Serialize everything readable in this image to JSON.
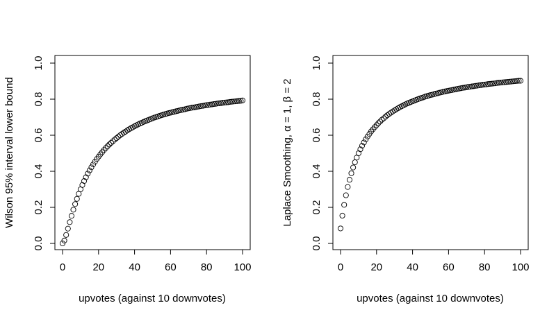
{
  "chart_data": [
    {
      "type": "scatter",
      "xlabel": "upvotes (against 10 downvotes)",
      "ylabel": "Wilson 95% interval lower bound",
      "xlim": [
        0,
        100
      ],
      "ylim": [
        0,
        1
      ],
      "x_ticks": [
        "0",
        "20",
        "40",
        "60",
        "80",
        "100"
      ],
      "y_ticks": [
        "0.0",
        "0.2",
        "0.4",
        "0.6",
        "0.8",
        "1.0"
      ],
      "grid": false,
      "series": [
        {
          "x": [
            0,
            1,
            2,
            3,
            4,
            5,
            6,
            7,
            8,
            9,
            10,
            11,
            12,
            13,
            14,
            15,
            16,
            17,
            18,
            19,
            20,
            21,
            22,
            23,
            24,
            25,
            26,
            27,
            28,
            29,
            30,
            31,
            32,
            33,
            34,
            35,
            36,
            37,
            38,
            39,
            40,
            41,
            42,
            43,
            44,
            45,
            46,
            47,
            48,
            49,
            50,
            51,
            52,
            53,
            54,
            55,
            56,
            57,
            58,
            59,
            60,
            61,
            62,
            63,
            64,
            65,
            66,
            67,
            68,
            69,
            70,
            71,
            72,
            73,
            74,
            75,
            76,
            77,
            78,
            79,
            80,
            81,
            82,
            83,
            84,
            85,
            86,
            87,
            88,
            89,
            90,
            91,
            92,
            93,
            94,
            95,
            96,
            97,
            98,
            99,
            100
          ],
          "y": [
            0.0,
            0.016,
            0.047,
            0.082,
            0.118,
            0.153,
            0.187,
            0.218,
            0.247,
            0.275,
            0.3,
            0.324,
            0.346,
            0.367,
            0.387,
            0.405,
            0.422,
            0.438,
            0.453,
            0.468,
            0.481,
            0.494,
            0.506,
            0.518,
            0.529,
            0.539,
            0.549,
            0.558,
            0.567,
            0.576,
            0.584,
            0.592,
            0.6,
            0.607,
            0.614,
            0.62,
            0.627,
            0.633,
            0.639,
            0.644,
            0.65,
            0.655,
            0.66,
            0.665,
            0.669,
            0.674,
            0.678,
            0.682,
            0.686,
            0.69,
            0.694,
            0.698,
            0.701,
            0.704,
            0.708,
            0.711,
            0.714,
            0.717,
            0.72,
            0.723,
            0.725,
            0.728,
            0.73,
            0.733,
            0.735,
            0.738,
            0.74,
            0.742,
            0.744,
            0.747,
            0.749,
            0.751,
            0.753,
            0.754,
            0.756,
            0.758,
            0.76,
            0.762,
            0.763,
            0.765,
            0.767,
            0.768,
            0.77,
            0.771,
            0.773,
            0.774,
            0.776,
            0.777,
            0.778,
            0.78,
            0.781,
            0.782,
            0.783,
            0.785,
            0.786,
            0.787,
            0.788,
            0.789,
            0.79,
            0.791,
            0.793
          ]
        }
      ]
    },
    {
      "type": "scatter",
      "xlabel": "upvotes (against 10 downvotes)",
      "ylabel": "Laplace Smoothing, α = 1,  β = 2",
      "xlim": [
        0,
        100
      ],
      "ylim": [
        0,
        1
      ],
      "x_ticks": [
        "0",
        "20",
        "40",
        "60",
        "80",
        "100"
      ],
      "y_ticks": [
        "0.0",
        "0.2",
        "0.4",
        "0.6",
        "0.8",
        "1.0"
      ],
      "grid": false,
      "series": [
        {
          "x": [
            0,
            1,
            2,
            3,
            4,
            5,
            6,
            7,
            8,
            9,
            10,
            11,
            12,
            13,
            14,
            15,
            16,
            17,
            18,
            19,
            20,
            21,
            22,
            23,
            24,
            25,
            26,
            27,
            28,
            29,
            30,
            31,
            32,
            33,
            34,
            35,
            36,
            37,
            38,
            39,
            40,
            41,
            42,
            43,
            44,
            45,
            46,
            47,
            48,
            49,
            50,
            51,
            52,
            53,
            54,
            55,
            56,
            57,
            58,
            59,
            60,
            61,
            62,
            63,
            64,
            65,
            66,
            67,
            68,
            69,
            70,
            71,
            72,
            73,
            74,
            75,
            76,
            77,
            78,
            79,
            80,
            81,
            82,
            83,
            84,
            85,
            86,
            87,
            88,
            89,
            90,
            91,
            92,
            93,
            94,
            95,
            96,
            97,
            98,
            99,
            100
          ],
          "y": [
            0.083,
            0.154,
            0.214,
            0.267,
            0.313,
            0.353,
            0.389,
            0.421,
            0.45,
            0.476,
            0.5,
            0.522,
            0.542,
            0.56,
            0.577,
            0.593,
            0.607,
            0.621,
            0.633,
            0.645,
            0.656,
            0.667,
            0.676,
            0.686,
            0.694,
            0.703,
            0.711,
            0.718,
            0.725,
            0.732,
            0.738,
            0.744,
            0.75,
            0.756,
            0.761,
            0.766,
            0.771,
            0.776,
            0.78,
            0.784,
            0.788,
            0.792,
            0.796,
            0.8,
            0.804,
            0.807,
            0.81,
            0.814,
            0.817,
            0.82,
            0.823,
            0.825,
            0.828,
            0.831,
            0.833,
            0.836,
            0.838,
            0.841,
            0.843,
            0.845,
            0.847,
            0.849,
            0.851,
            0.853,
            0.855,
            0.857,
            0.859,
            0.861,
            0.863,
            0.864,
            0.866,
            0.868,
            0.869,
            0.871,
            0.872,
            0.874,
            0.875,
            0.877,
            0.878,
            0.88,
            0.881,
            0.882,
            0.884,
            0.885,
            0.886,
            0.887,
            0.888,
            0.89,
            0.891,
            0.892,
            0.893,
            0.894,
            0.895,
            0.896,
            0.897,
            0.898,
            0.899,
            0.9,
            0.901,
            0.902,
            0.902
          ]
        }
      ]
    }
  ]
}
